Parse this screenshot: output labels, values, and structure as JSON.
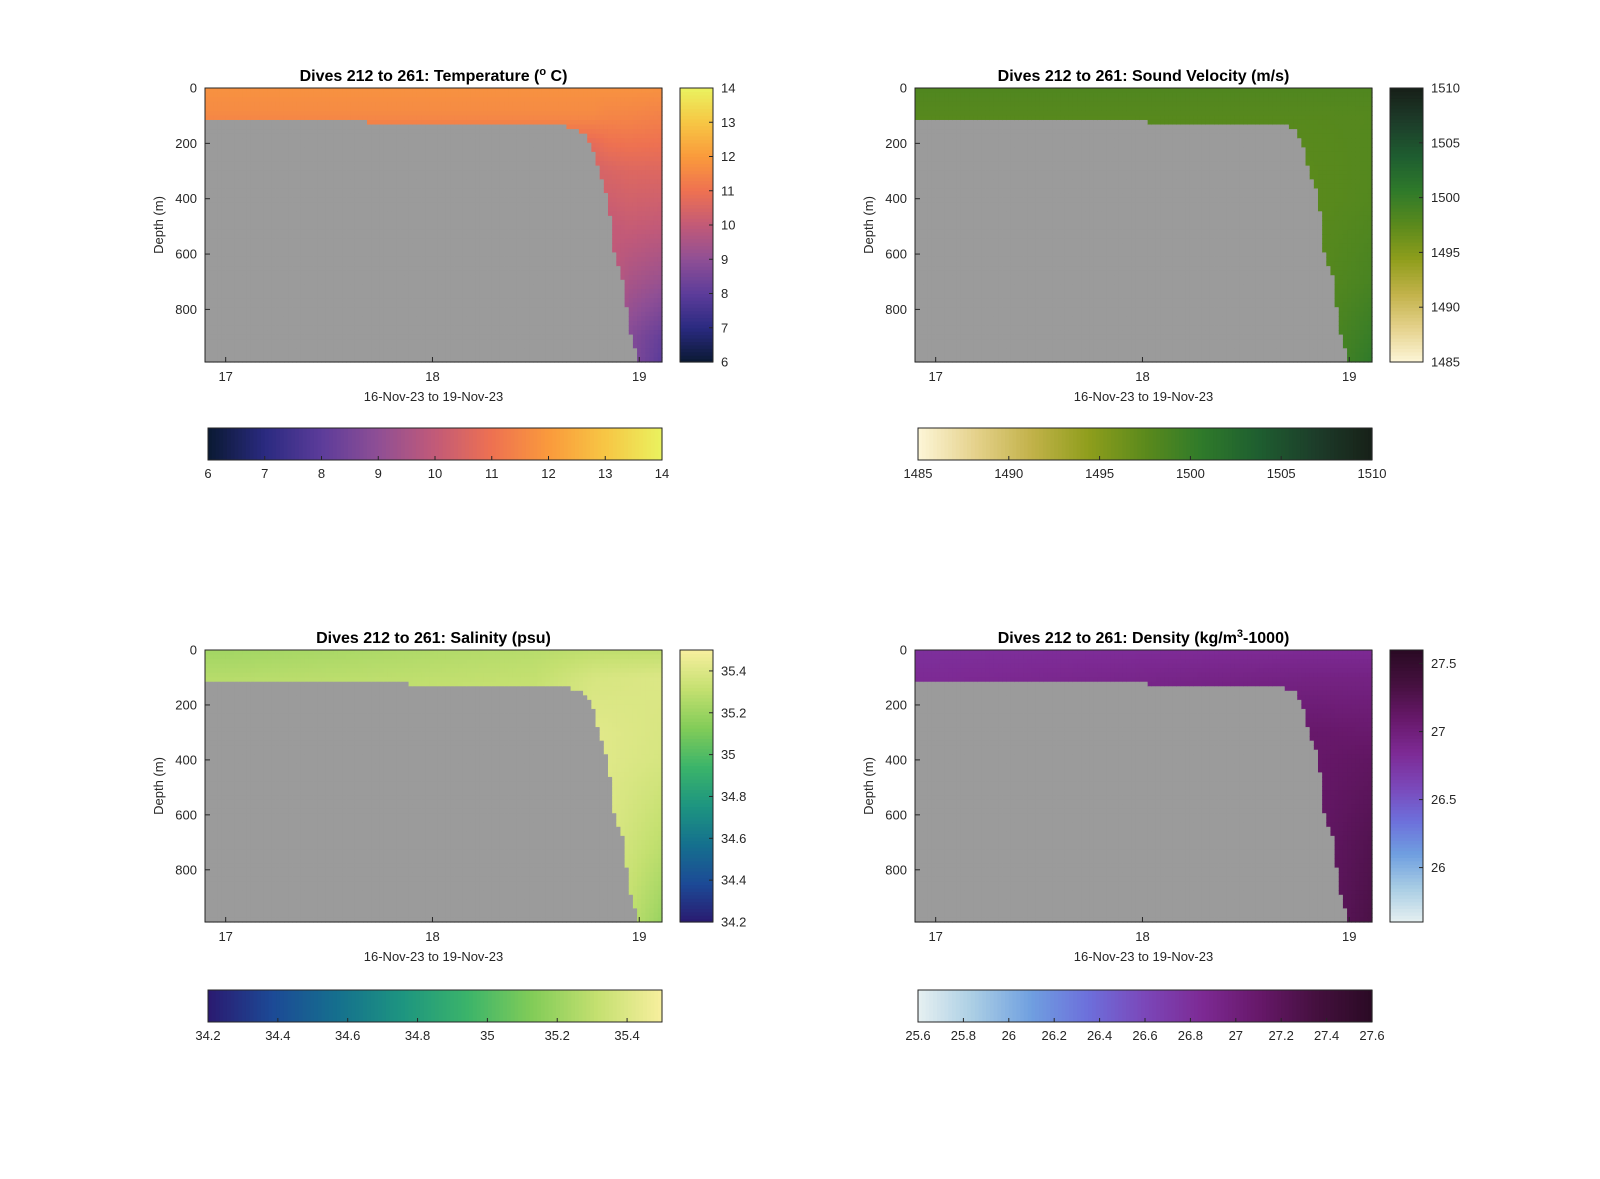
{
  "colors": {
    "land_mask": "#9b9b9b",
    "axis": "#262626",
    "title": "#000000"
  },
  "chart_data": [
    {
      "type": "heatmap",
      "id": "temperature",
      "title": "Dives 212 to 261: Temperature (",
      "title_sup": "o",
      "title_suffix": " C)",
      "xlabel": "16-Nov-23 to 19-Nov-23",
      "ylabel": "Depth (m)",
      "xlim": [
        16.9,
        19.11
      ],
      "ylim": [
        0,
        990
      ],
      "y_reversed": true,
      "xticks": [
        17,
        18,
        19
      ],
      "yticks": [
        0,
        200,
        400,
        600,
        800
      ],
      "colormap": [
        "#0a1932",
        "#2a2a80",
        "#5c3c9a",
        "#8f4f95",
        "#c25a78",
        "#ee7151",
        "#fa9a3c",
        "#f7c644",
        "#eaf25f"
      ],
      "clim": [
        6,
        14
      ],
      "colorbar_ticks": [
        6,
        7,
        8,
        9,
        10,
        11,
        12,
        13,
        14
      ],
      "fill_value": 11.8,
      "bottom_profile": [
        [
          16.9,
          115
        ],
        [
          17.3,
          120
        ],
        [
          17.8,
          125
        ],
        [
          18.1,
          132
        ],
        [
          18.25,
          140
        ],
        [
          18.5,
          128
        ],
        [
          18.6,
          128
        ],
        [
          18.74,
          165
        ],
        [
          18.78,
          230
        ],
        [
          18.8,
          290
        ],
        [
          18.85,
          400
        ],
        [
          18.88,
          600
        ],
        [
          18.92,
          700
        ],
        [
          18.96,
          900
        ],
        [
          19.0,
          990
        ]
      ],
      "profiles": [
        {
          "x": 18.78,
          "values": [
            [
              0,
              11.8
            ],
            [
              100,
              11.6
            ],
            [
              200,
              10.8
            ],
            [
              300,
              10.4
            ]
          ]
        },
        {
          "x": 18.85,
          "values": [
            [
              0,
              11.8
            ],
            [
              100,
              11.5
            ],
            [
              300,
              10.5
            ],
            [
              500,
              10.0
            ]
          ]
        },
        {
          "x": 18.95,
          "values": [
            [
              0,
              11.8
            ],
            [
              100,
              11.5
            ],
            [
              300,
              10.6
            ],
            [
              500,
              10.1
            ],
            [
              700,
              9.5
            ],
            [
              900,
              8.8
            ]
          ]
        },
        {
          "x": 19.1,
          "values": [
            [
              0,
              11.8
            ],
            [
              100,
              11.4
            ],
            [
              300,
              10.6
            ],
            [
              500,
              10.0
            ],
            [
              700,
              9.2
            ],
            [
              900,
              8.2
            ],
            [
              990,
              8.0
            ]
          ]
        }
      ]
    },
    {
      "type": "heatmap",
      "id": "sound_velocity",
      "title": "Dives 212 to 261: Sound Velocity (m/s)",
      "title_sup": "",
      "title_suffix": "",
      "xlabel": "16-Nov-23 to 19-Nov-23",
      "ylabel": "Depth (m)",
      "xlim": [
        16.9,
        19.11
      ],
      "ylim": [
        0,
        990
      ],
      "y_reversed": true,
      "xticks": [
        17,
        18,
        19
      ],
      "yticks": [
        0,
        200,
        400,
        600,
        800
      ],
      "colormap": [
        "#fdf6d8",
        "#e5d28c",
        "#c2b24a",
        "#8f9e1c",
        "#5b8a1c",
        "#2f7a2a",
        "#1e5e30",
        "#1d3d2a",
        "#172018"
      ],
      "clim": [
        1485,
        1510
      ],
      "colorbar_ticks": [
        1485,
        1490,
        1495,
        1500,
        1505,
        1510
      ],
      "fill_value": 1498.5,
      "bottom_profile": [
        [
          16.9,
          110
        ],
        [
          17.3,
          115
        ],
        [
          17.8,
          120
        ],
        [
          18.1,
          125
        ],
        [
          18.25,
          132
        ],
        [
          18.5,
          125
        ],
        [
          18.6,
          125
        ],
        [
          18.74,
          145
        ],
        [
          18.78,
          220
        ],
        [
          18.8,
          290
        ],
        [
          18.85,
          380
        ],
        [
          18.88,
          600
        ],
        [
          18.92,
          680
        ],
        [
          18.96,
          900
        ],
        [
          19.0,
          990
        ]
      ],
      "profiles": [
        {
          "x": 18.78,
          "values": [
            [
              0,
              1498.3
            ],
            [
              100,
              1497.8
            ],
            [
              300,
              1497.5
            ]
          ]
        },
        {
          "x": 19.1,
          "values": [
            [
              0,
              1498.3
            ],
            [
              100,
              1497.9
            ],
            [
              400,
              1498.0
            ],
            [
              700,
              1498.8
            ],
            [
              990,
              1500.5
            ]
          ]
        }
      ]
    },
    {
      "type": "heatmap",
      "id": "salinity",
      "title": "Dives 212 to 261: Salinity (psu)",
      "title_sup": "",
      "title_suffix": "",
      "xlabel": "16-Nov-23 to 19-Nov-23",
      "ylabel": "Depth (m)",
      "xlim": [
        16.9,
        19.11
      ],
      "ylim": [
        0,
        990
      ],
      "y_reversed": true,
      "xticks": [
        17,
        18,
        19
      ],
      "yticks": [
        0,
        200,
        400,
        600,
        800
      ],
      "colormap": [
        "#2a1a70",
        "#1c4a96",
        "#15708e",
        "#1d9580",
        "#3bb46a",
        "#82cc58",
        "#c4e070",
        "#f7ef9e"
      ],
      "clim": [
        34.2,
        35.5
      ],
      "colorbar_ticks": [
        34.2,
        34.4,
        34.6,
        34.8,
        35,
        35.2,
        35.4
      ],
      "fill_value": 35.3,
      "bottom_profile": [
        [
          16.9,
          110
        ],
        [
          17.3,
          118
        ],
        [
          17.8,
          122
        ],
        [
          18.1,
          128
        ],
        [
          18.25,
          138
        ],
        [
          18.5,
          125
        ],
        [
          18.6,
          125
        ],
        [
          18.74,
          160
        ],
        [
          18.78,
          220
        ],
        [
          18.8,
          290
        ],
        [
          18.85,
          400
        ],
        [
          18.88,
          600
        ],
        [
          18.92,
          680
        ],
        [
          18.96,
          900
        ],
        [
          19.0,
          990
        ]
      ],
      "profiles": [
        {
          "x": 17.0,
          "values": [
            [
              0,
              35.22
            ],
            [
              60,
              35.25
            ],
            [
              110,
              35.28
            ]
          ]
        },
        {
          "x": 18.5,
          "values": [
            [
              0,
              35.28
            ],
            [
              60,
              35.3
            ],
            [
              125,
              35.32
            ]
          ]
        },
        {
          "x": 18.78,
          "values": [
            [
              0,
              35.3
            ],
            [
              100,
              35.38
            ],
            [
              300,
              35.42
            ]
          ]
        },
        {
          "x": 19.1,
          "values": [
            [
              0,
              35.3
            ],
            [
              100,
              35.4
            ],
            [
              400,
              35.38
            ],
            [
              700,
              35.3
            ],
            [
              990,
              35.2
            ]
          ]
        }
      ]
    },
    {
      "type": "heatmap",
      "id": "density",
      "title": "Dives 212 to 261: Density (kg/m",
      "title_sup": "3",
      "title_suffix": "-1000)",
      "xlabel": "16-Nov-23 to 19-Nov-23",
      "ylabel": "Depth (m)",
      "xlim": [
        16.9,
        19.11
      ],
      "ylim": [
        0,
        990
      ],
      "y_reversed": true,
      "xticks": [
        17,
        18,
        19
      ],
      "yticks": [
        0,
        200,
        400,
        600,
        800
      ],
      "colormap": [
        "#e6f0f1",
        "#a9cde4",
        "#6f9fe0",
        "#6d6fdb",
        "#7b47b9",
        "#7d2a94",
        "#67186a",
        "#45103f",
        "#2a0a24"
      ],
      "clim": [
        25.6,
        27.6
      ],
      "colorbar_ticks": [
        26,
        26.5,
        27,
        27.5
      ],
      "colorbar_ticks_h": [
        25.6,
        25.8,
        26,
        26.2,
        26.4,
        26.6,
        26.8,
        27,
        27.2,
        27.4,
        27.6
      ],
      "fill_value": 26.85,
      "bottom_profile": [
        [
          16.9,
          110
        ],
        [
          17.3,
          115
        ],
        [
          17.8,
          120
        ],
        [
          18.1,
          125
        ],
        [
          18.25,
          132
        ],
        [
          18.5,
          125
        ],
        [
          18.6,
          125
        ],
        [
          18.74,
          150
        ],
        [
          18.78,
          220
        ],
        [
          18.8,
          290
        ],
        [
          18.85,
          380
        ],
        [
          18.88,
          600
        ],
        [
          18.92,
          680
        ],
        [
          18.96,
          900
        ],
        [
          19.0,
          990
        ]
      ],
      "profiles": [
        {
          "x": 17.0,
          "values": [
            [
              0,
              26.8
            ],
            [
              110,
              26.85
            ]
          ]
        },
        {
          "x": 18.78,
          "values": [
            [
              0,
              26.85
            ],
            [
              100,
              26.95
            ],
            [
              300,
              27.1
            ]
          ]
        },
        {
          "x": 19.1,
          "values": [
            [
              0,
              26.85
            ],
            [
              100,
              26.95
            ],
            [
              400,
              27.15
            ],
            [
              700,
              27.25
            ],
            [
              990,
              27.3
            ]
          ]
        }
      ]
    }
  ]
}
